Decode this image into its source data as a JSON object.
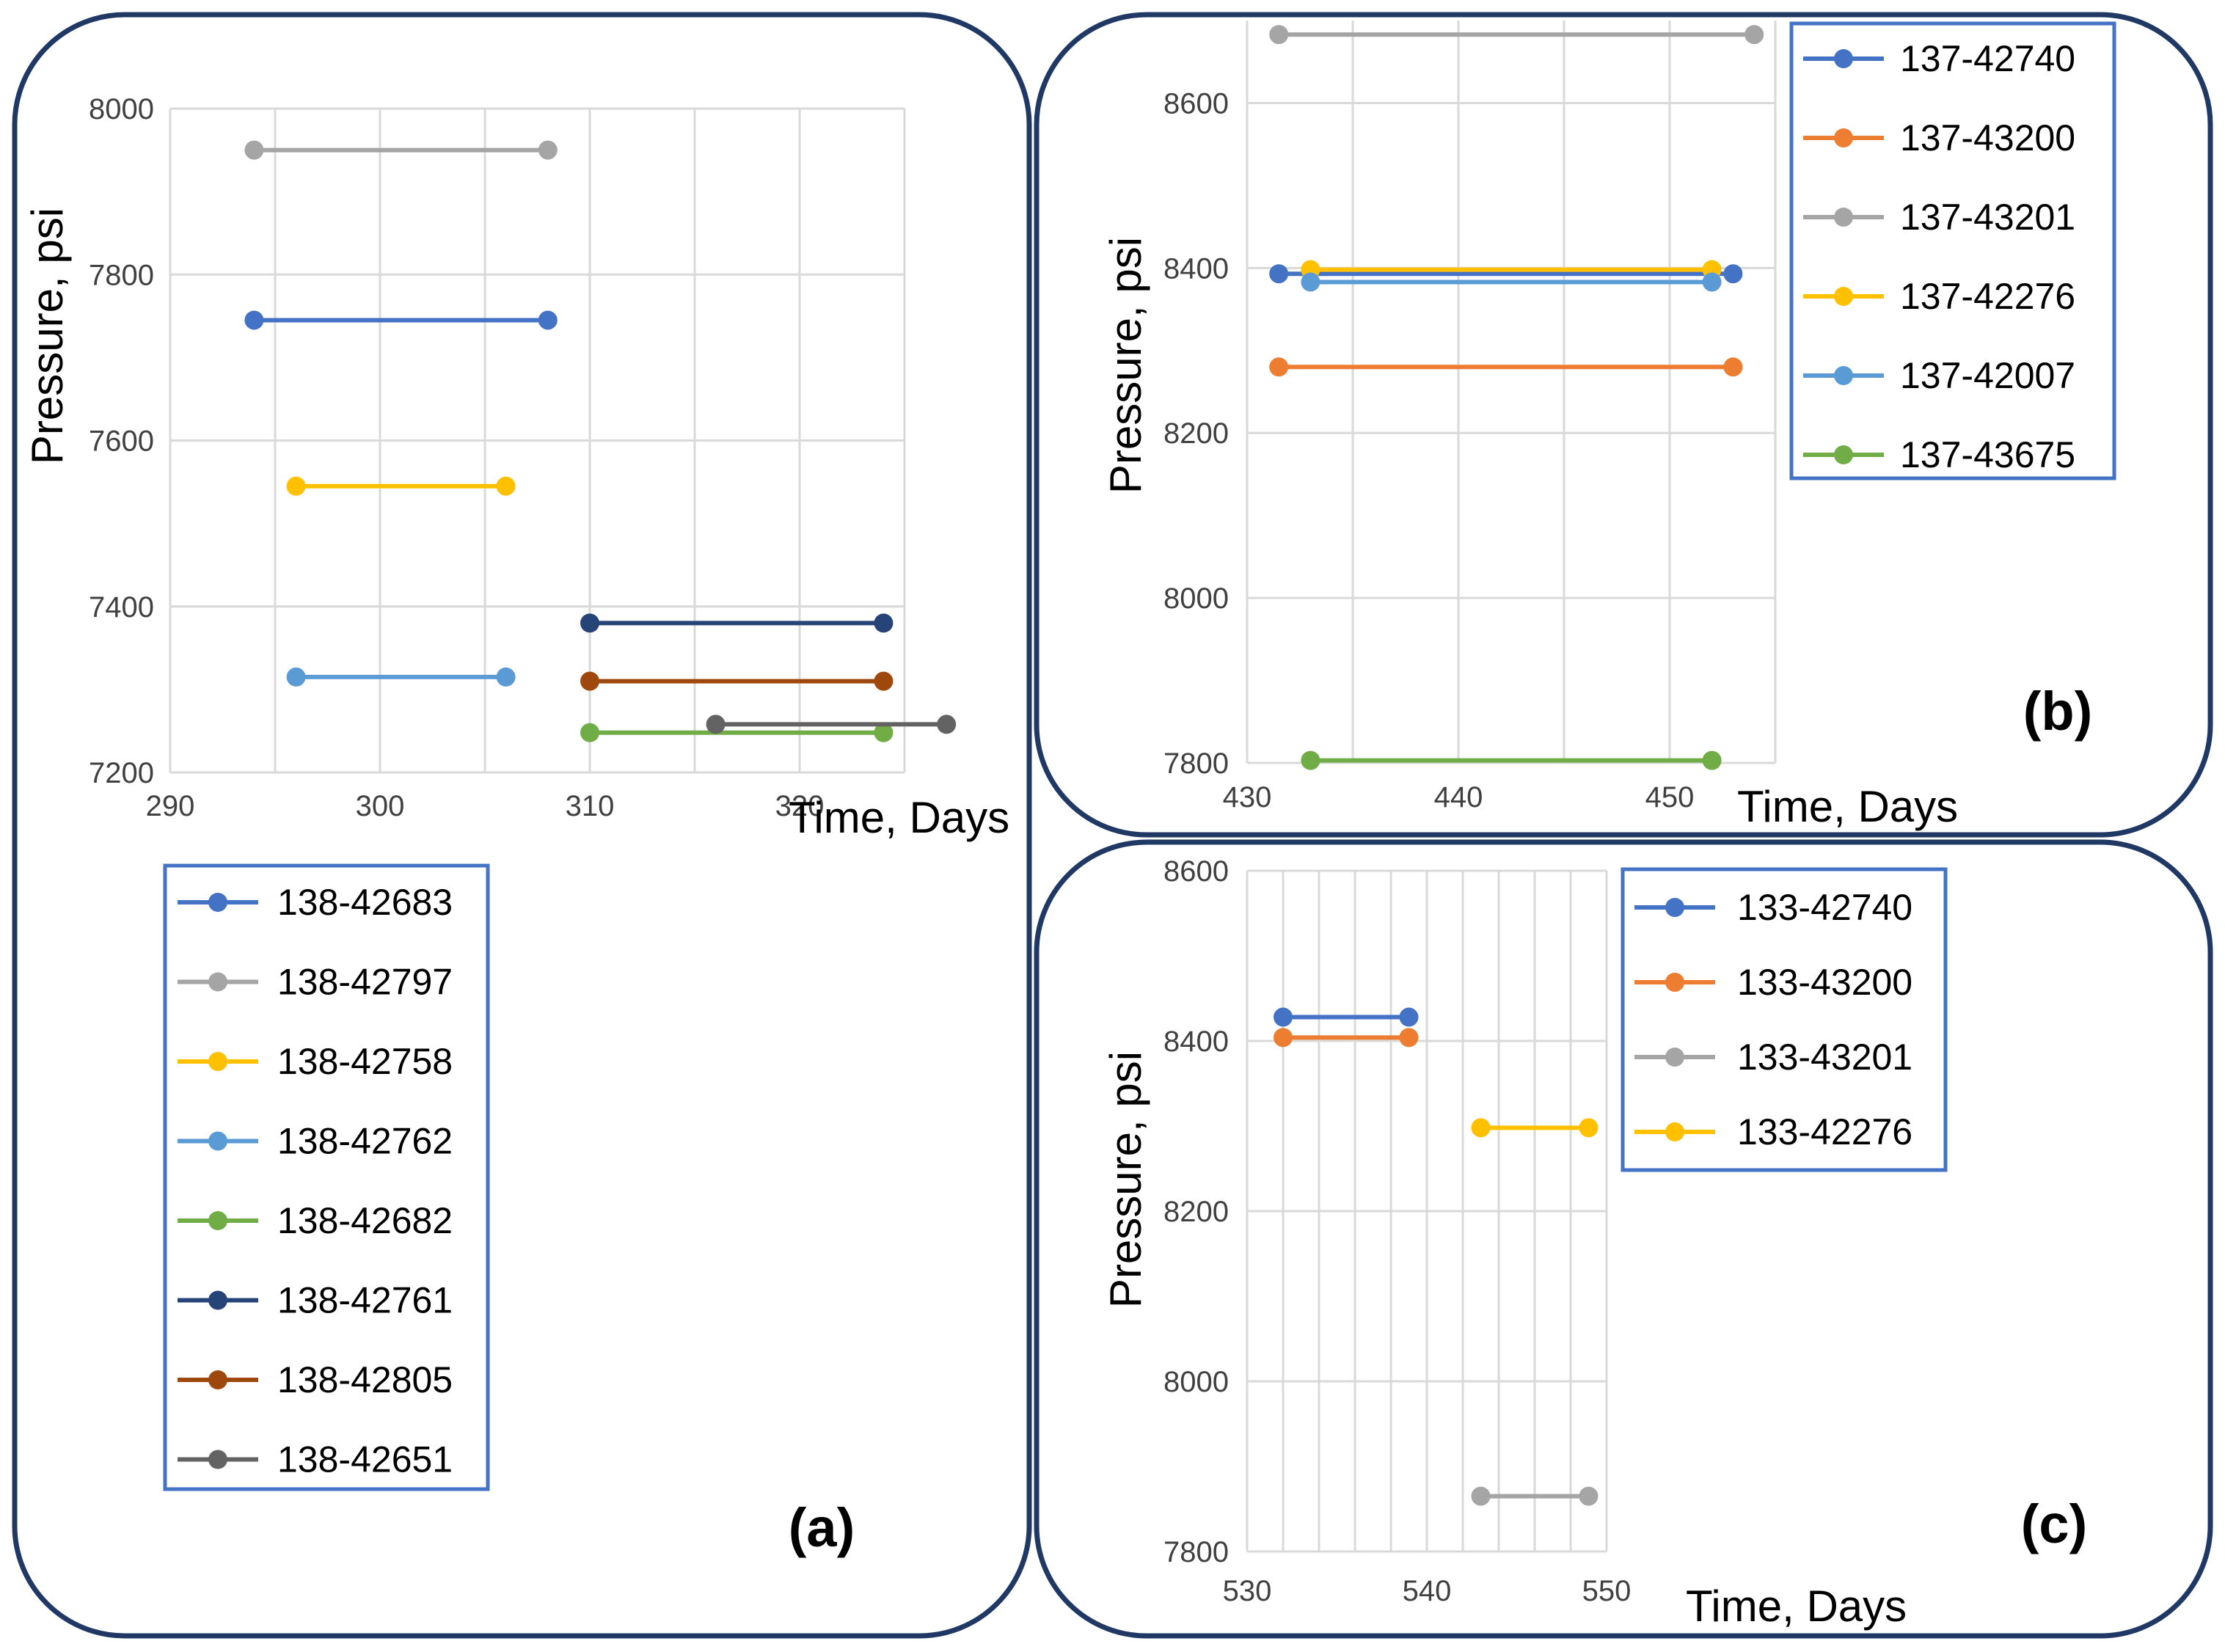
{
  "chart_data": [
    {
      "id": "a",
      "type": "line",
      "panel_label": "(a)",
      "xlabel": "Time, Days",
      "ylabel": "Pressure, psi",
      "xlim": [
        290,
        325
      ],
      "ylim": [
        7200,
        8000
      ],
      "xticks": [
        290,
        300,
        310,
        320
      ],
      "yticks": [
        7200,
        7400,
        7600,
        7800,
        8000
      ],
      "grid": true,
      "legend_position": "below",
      "series": [
        {
          "name": "138-42683",
          "color": "#4472C4",
          "x": [
            294,
            308
          ],
          "y": [
            7745,
            7745
          ]
        },
        {
          "name": "138-42797",
          "color": "#A5A5A5",
          "x": [
            294,
            308
          ],
          "y": [
            7950,
            7950
          ]
        },
        {
          "name": "138-42758",
          "color": "#FFC000",
          "x": [
            296,
            306
          ],
          "y": [
            7545,
            7545
          ]
        },
        {
          "name": "138-42762",
          "color": "#5B9BD5",
          "x": [
            296,
            306
          ],
          "y": [
            7315,
            7315
          ]
        },
        {
          "name": "138-42682",
          "color": "#70AD47",
          "x": [
            310,
            324
          ],
          "y": [
            7248,
            7248
          ]
        },
        {
          "name": "138-42761",
          "color": "#264478",
          "x": [
            310,
            324
          ],
          "y": [
            7380,
            7380
          ]
        },
        {
          "name": "138-42805",
          "color": "#9E480E",
          "x": [
            310,
            324
          ],
          "y": [
            7310,
            7310
          ]
        },
        {
          "name": "138-42651",
          "color": "#636363",
          "x": [
            316,
            327
          ],
          "y": [
            7258,
            7258
          ]
        }
      ]
    },
    {
      "id": "b",
      "type": "line",
      "panel_label": "(b)",
      "xlabel": "Time, Days",
      "ylabel": "Pressure, psi",
      "xlim": [
        430,
        455
      ],
      "ylim": [
        7800,
        8700
      ],
      "xticks": [
        430,
        440,
        450
      ],
      "yticks": [
        7800,
        8000,
        8200,
        8400,
        8600
      ],
      "grid": true,
      "legend_position": "top-right",
      "series": [
        {
          "name": "137-42740",
          "color": "#4472C4",
          "x": [
            431.5,
            453
          ],
          "y": [
            8393,
            8393
          ]
        },
        {
          "name": "137-43200",
          "color": "#ED7D31",
          "x": [
            431.5,
            453
          ],
          "y": [
            8280,
            8280
          ]
        },
        {
          "name": "137-43201",
          "color": "#A5A5A5",
          "x": [
            431.5,
            454
          ],
          "y": [
            8683,
            8683
          ]
        },
        {
          "name": "137-42276",
          "color": "#FFC000",
          "x": [
            433,
            452
          ],
          "y": [
            8398,
            8398
          ]
        },
        {
          "name": "137-42007",
          "color": "#5B9BD5",
          "x": [
            433,
            452
          ],
          "y": [
            8383,
            8383
          ]
        },
        {
          "name": "137-43675",
          "color": "#70AD47",
          "x": [
            433,
            452
          ],
          "y": [
            7803,
            7803
          ]
        }
      ]
    },
    {
      "id": "c",
      "type": "line",
      "panel_label": "(c)",
      "xlabel": "Time, Days",
      "ylabel": "Pressure, psi",
      "xlim": [
        530,
        550
      ],
      "ylim": [
        7800,
        8600
      ],
      "xticks": [
        530,
        540,
        550
      ],
      "yticks": [
        7800,
        8000,
        8200,
        8400,
        8600
      ],
      "grid": true,
      "legend_position": "top-right",
      "series": [
        {
          "name": "133-42740",
          "color": "#4472C4",
          "x": [
            532,
            539
          ],
          "y": [
            8428,
            8428
          ]
        },
        {
          "name": "133-43200",
          "color": "#ED7D31",
          "x": [
            532,
            539
          ],
          "y": [
            8404,
            8404
          ]
        },
        {
          "name": "133-43201",
          "color": "#A5A5A5",
          "x": [
            543,
            549
          ],
          "y": [
            7865,
            7865
          ]
        },
        {
          "name": "133-42276",
          "color": "#FFC000",
          "x": [
            543,
            549
          ],
          "y": [
            8298,
            8298
          ]
        }
      ]
    }
  ]
}
